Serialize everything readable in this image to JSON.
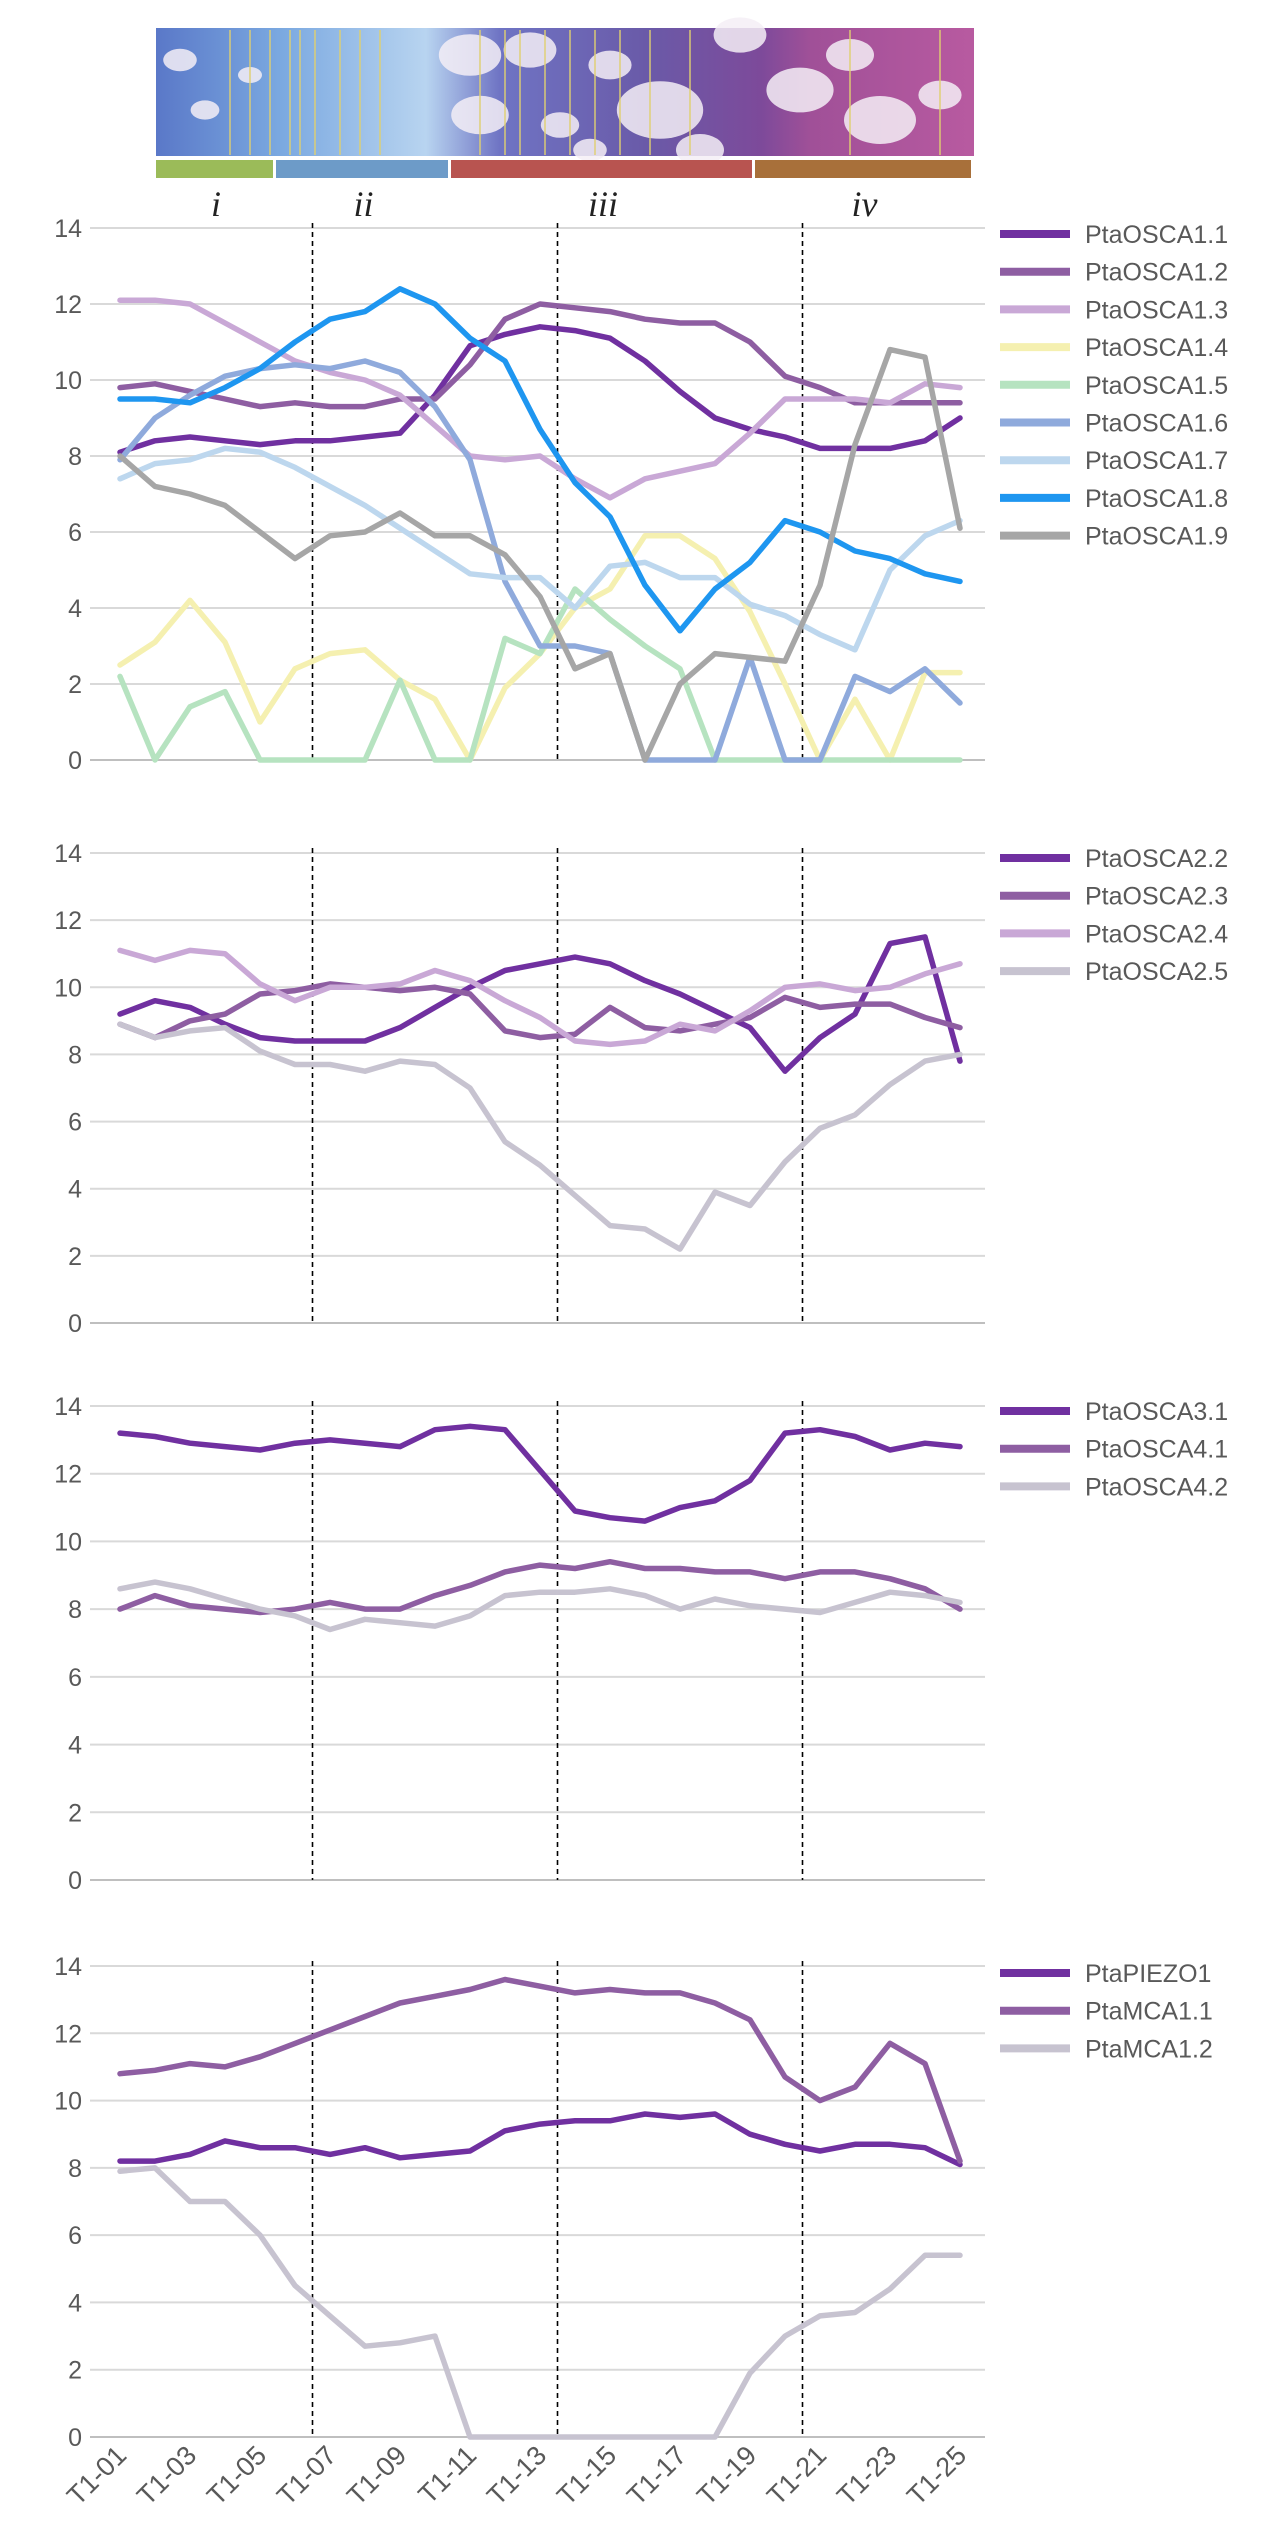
{
  "zones": [
    {
      "label": "i",
      "color": "#9bbb59"
    },
    {
      "label": "ii",
      "color": "#6d9bc8"
    },
    {
      "label": "iii",
      "color": "#b85450"
    },
    {
      "label": "iv",
      "color": "#a8703a"
    }
  ],
  "chart_data": [
    {
      "type": "line",
      "grid": true,
      "legend": "right",
      "ylim": [
        0,
        14
      ],
      "yticks": [
        0,
        2,
        4,
        6,
        8,
        10,
        12,
        14
      ],
      "x": [
        "T1-01",
        "T1-02",
        "T1-03",
        "T1-04",
        "T1-05",
        "T1-06",
        "T1-07",
        "T1-08",
        "T1-09",
        "T1-10",
        "T1-11",
        "T1-12",
        "T1-13",
        "T1-14",
        "T1-15",
        "T1-16",
        "T1-17",
        "T1-18",
        "T1-19",
        "T1-20",
        "T1-21",
        "T1-22",
        "T1-23",
        "T1-24",
        "T1-25"
      ],
      "series": [
        {
          "name": "PtaOSCA1.1",
          "color": "#7030a0",
          "values": [
            8.1,
            8.4,
            8.5,
            8.4,
            8.3,
            8.4,
            8.4,
            8.5,
            8.6,
            9.6,
            10.9,
            11.2,
            11.4,
            11.3,
            11.1,
            10.5,
            9.7,
            9.0,
            8.7,
            8.5,
            8.2,
            8.2,
            8.2,
            8.4,
            9.0
          ]
        },
        {
          "name": "PtaOSCA1.2",
          "color": "#8e5ea2",
          "values": [
            9.8,
            9.9,
            9.7,
            9.5,
            9.3,
            9.4,
            9.3,
            9.3,
            9.5,
            9.5,
            10.4,
            11.6,
            12.0,
            11.9,
            11.8,
            11.6,
            11.5,
            11.5,
            11.0,
            10.1,
            9.8,
            9.4,
            9.4,
            9.4,
            9.4
          ]
        },
        {
          "name": "PtaOSCA1.3",
          "color": "#c9a8d6",
          "values": [
            12.1,
            12.1,
            12.0,
            11.5,
            11.0,
            10.5,
            10.2,
            10.0,
            9.6,
            8.8,
            8.0,
            7.9,
            8.0,
            7.4,
            6.9,
            7.4,
            7.6,
            7.8,
            8.6,
            9.5,
            9.5,
            9.5,
            9.4,
            9.9,
            9.8
          ]
        },
        {
          "name": "PtaOSCA1.4",
          "color": "#f5f0b0",
          "values": [
            2.5,
            3.1,
            4.2,
            3.1,
            1.0,
            2.4,
            2.8,
            2.9,
            2.1,
            1.6,
            0.0,
            1.9,
            2.8,
            4.0,
            4.5,
            5.9,
            5.9,
            5.3,
            3.9,
            2.0,
            0.0,
            1.6,
            0.0,
            2.3,
            2.3
          ]
        },
        {
          "name": "PtaOSCA1.5",
          "color": "#b6e3c0",
          "values": [
            2.2,
            0.0,
            1.4,
            1.8,
            0.0,
            0.0,
            0.0,
            0.0,
            2.1,
            0.0,
            0.0,
            3.2,
            2.8,
            4.5,
            3.7,
            3.0,
            2.4,
            0.0,
            0.0,
            0.0,
            0.0,
            0.0,
            0.0,
            0.0,
            0.0
          ]
        },
        {
          "name": "PtaOSCA1.6",
          "color": "#8faadc",
          "values": [
            7.9,
            9.0,
            9.6,
            10.1,
            10.3,
            10.4,
            10.3,
            10.5,
            10.2,
            9.3,
            7.9,
            4.7,
            3.0,
            3.0,
            2.8,
            0.0,
            0.0,
            0.0,
            2.7,
            0.0,
            0.0,
            2.2,
            1.8,
            2.4,
            1.5
          ]
        },
        {
          "name": "PtaOSCA1.7",
          "color": "#bdd7ee",
          "values": [
            7.4,
            7.8,
            7.9,
            8.2,
            8.1,
            7.7,
            7.2,
            6.7,
            6.1,
            5.5,
            4.9,
            4.8,
            4.8,
            4.0,
            5.1,
            5.2,
            4.8,
            4.8,
            4.1,
            3.8,
            3.3,
            2.9,
            5.0,
            5.9,
            6.3
          ]
        },
        {
          "name": "PtaOSCA1.8",
          "color": "#1e96f0",
          "values": [
            9.5,
            9.5,
            9.4,
            9.8,
            10.3,
            11.0,
            11.6,
            11.8,
            12.4,
            12.0,
            11.1,
            10.5,
            8.7,
            7.3,
            6.4,
            4.6,
            3.4,
            4.5,
            5.2,
            6.3,
            6.0,
            5.5,
            5.3,
            4.9,
            4.7
          ]
        },
        {
          "name": "PtaOSCA1.9",
          "color": "#a6a6a6",
          "values": [
            8.0,
            7.2,
            7.0,
            6.7,
            6.0,
            5.3,
            5.9,
            6.0,
            6.5,
            5.9,
            5.9,
            5.4,
            4.3,
            2.4,
            2.8,
            0.0,
            2.0,
            2.8,
            2.7,
            2.6,
            4.6,
            8.3,
            10.8,
            10.6,
            6.1
          ]
        }
      ]
    },
    {
      "type": "line",
      "grid": true,
      "legend": "right",
      "ylim": [
        0,
        14
      ],
      "yticks": [
        0,
        2,
        4,
        6,
        8,
        10,
        12,
        14
      ],
      "x": [
        "T1-01",
        "T1-02",
        "T1-03",
        "T1-04",
        "T1-05",
        "T1-06",
        "T1-07",
        "T1-08",
        "T1-09",
        "T1-10",
        "T1-11",
        "T1-12",
        "T1-13",
        "T1-14",
        "T1-15",
        "T1-16",
        "T1-17",
        "T1-18",
        "T1-19",
        "T1-20",
        "T1-21",
        "T1-22",
        "T1-23",
        "T1-24",
        "T1-25"
      ],
      "series": [
        {
          "name": "PtaOSCA2.2",
          "color": "#7030a0",
          "values": [
            9.2,
            9.6,
            9.4,
            8.9,
            8.5,
            8.4,
            8.4,
            8.4,
            8.8,
            9.4,
            10.0,
            10.5,
            10.7,
            10.9,
            10.7,
            10.2,
            9.8,
            9.3,
            8.8,
            7.5,
            8.5,
            9.2,
            11.3,
            11.5,
            7.8
          ]
        },
        {
          "name": "PtaOSCA2.3",
          "color": "#8e5ea2",
          "values": [
            8.9,
            8.5,
            9.0,
            9.2,
            9.8,
            9.9,
            10.1,
            10.0,
            9.9,
            10.0,
            9.8,
            8.7,
            8.5,
            8.6,
            9.4,
            8.8,
            8.7,
            8.9,
            9.1,
            9.7,
            9.4,
            9.5,
            9.5,
            9.1,
            8.8
          ]
        },
        {
          "name": "PtaOSCA2.4",
          "color": "#c9a8d6",
          "values": [
            11.1,
            10.8,
            11.1,
            11.0,
            10.1,
            9.6,
            10.0,
            10.0,
            10.1,
            10.5,
            10.2,
            9.6,
            9.1,
            8.4,
            8.3,
            8.4,
            8.9,
            8.7,
            9.3,
            10.0,
            10.1,
            9.9,
            10.0,
            10.4,
            10.7
          ]
        },
        {
          "name": "PtaOSCA2.5",
          "color": "#c7c3d0",
          "values": [
            8.9,
            8.5,
            8.7,
            8.8,
            8.1,
            7.7,
            7.7,
            7.5,
            7.8,
            7.7,
            7.0,
            5.4,
            4.7,
            3.8,
            2.9,
            2.8,
            2.2,
            3.9,
            3.5,
            4.8,
            5.8,
            6.2,
            7.1,
            7.8,
            8.0
          ]
        }
      ]
    },
    {
      "type": "line",
      "grid": true,
      "legend": "right",
      "ylim": [
        0,
        14
      ],
      "yticks": [
        0,
        2,
        4,
        6,
        8,
        10,
        12,
        14
      ],
      "x": [
        "T1-01",
        "T1-02",
        "T1-03",
        "T1-04",
        "T1-05",
        "T1-06",
        "T1-07",
        "T1-08",
        "T1-09",
        "T1-10",
        "T1-11",
        "T1-12",
        "T1-13",
        "T1-14",
        "T1-15",
        "T1-16",
        "T1-17",
        "T1-18",
        "T1-19",
        "T1-20",
        "T1-21",
        "T1-22",
        "T1-23",
        "T1-24",
        "T1-25"
      ],
      "series": [
        {
          "name": "PtaOSCA3.1",
          "color": "#7030a0",
          "values": [
            13.2,
            13.1,
            12.9,
            12.8,
            12.7,
            12.9,
            13.0,
            12.9,
            12.8,
            13.3,
            13.4,
            13.3,
            12.1,
            10.9,
            10.7,
            10.6,
            11.0,
            11.2,
            11.8,
            13.2,
            13.3,
            13.1,
            12.7,
            12.9,
            12.8
          ]
        },
        {
          "name": "PtaOSCA4.1",
          "color": "#8e5ea2",
          "values": [
            8.0,
            8.4,
            8.1,
            8.0,
            7.9,
            8.0,
            8.2,
            8.0,
            8.0,
            8.4,
            8.7,
            9.1,
            9.3,
            9.2,
            9.4,
            9.2,
            9.2,
            9.1,
            9.1,
            8.9,
            9.1,
            9.1,
            8.9,
            8.6,
            8.0
          ]
        },
        {
          "name": "PtaOSCA4.2",
          "color": "#c7c3d0",
          "values": [
            8.6,
            8.8,
            8.6,
            8.3,
            8.0,
            7.8,
            7.4,
            7.7,
            7.6,
            7.5,
            7.8,
            8.4,
            8.5,
            8.5,
            8.6,
            8.4,
            8.0,
            8.3,
            8.1,
            8.0,
            7.9,
            8.2,
            8.5,
            8.4,
            8.2
          ]
        }
      ]
    },
    {
      "type": "line",
      "grid": true,
      "legend": "right",
      "ylim": [
        0,
        14
      ],
      "yticks": [
        0,
        2,
        4,
        6,
        8,
        10,
        12,
        14
      ],
      "x": [
        "T1-01",
        "T1-02",
        "T1-03",
        "T1-04",
        "T1-05",
        "T1-06",
        "T1-07",
        "T1-08",
        "T1-09",
        "T1-10",
        "T1-11",
        "T1-12",
        "T1-13",
        "T1-14",
        "T1-15",
        "T1-16",
        "T1-17",
        "T1-18",
        "T1-19",
        "T1-20",
        "T1-21",
        "T1-22",
        "T1-23",
        "T1-24",
        "T1-25"
      ],
      "x_tick_labels": [
        "T1-01",
        "T1-03",
        "T1-05",
        "T1-07",
        "T1-09",
        "T1-11",
        "T1-13",
        "T1-15",
        "T1-17",
        "T1-19",
        "T1-21",
        "T1-23",
        "T1-25"
      ],
      "series": [
        {
          "name": "PtaPIEZO1",
          "color": "#7030a0",
          "values": [
            8.2,
            8.2,
            8.4,
            8.8,
            8.6,
            8.6,
            8.4,
            8.6,
            8.3,
            8.4,
            8.5,
            9.1,
            9.3,
            9.4,
            9.4,
            9.6,
            9.5,
            9.6,
            9.0,
            8.7,
            8.5,
            8.7,
            8.7,
            8.6,
            8.1
          ]
        },
        {
          "name": "PtaMCA1.1",
          "color": "#8e5ea2",
          "values": [
            10.8,
            10.9,
            11.1,
            11.0,
            11.3,
            11.7,
            12.1,
            12.5,
            12.9,
            13.1,
            13.3,
            13.6,
            13.4,
            13.2,
            13.3,
            13.2,
            13.2,
            12.9,
            12.4,
            10.7,
            10.0,
            10.4,
            11.7,
            11.1,
            8.2
          ]
        },
        {
          "name": "PtaMCA1.2",
          "color": "#c7c3d0",
          "values": [
            7.9,
            8.0,
            7.0,
            7.0,
            6.0,
            4.5,
            3.6,
            2.7,
            2.8,
            3.0,
            0.0,
            0.0,
            0.0,
            0.0,
            0.0,
            0.0,
            0.0,
            0.0,
            1.9,
            3.0,
            3.6,
            3.7,
            4.4,
            5.4,
            5.4
          ]
        }
      ]
    }
  ]
}
